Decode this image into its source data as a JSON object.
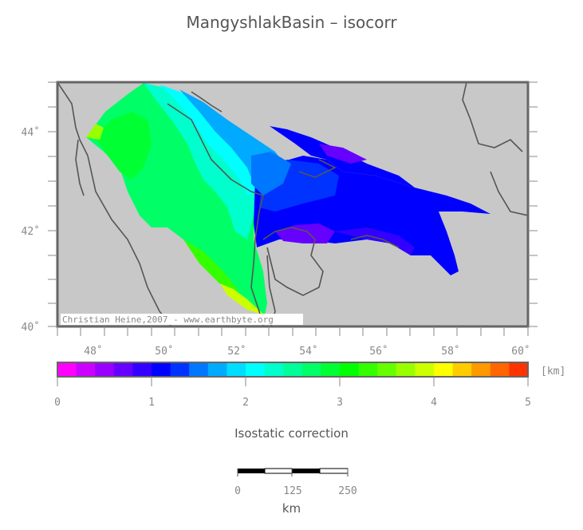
{
  "title": "MangyshlakBasin – isocorr",
  "map": {
    "lat_labels": [
      "44˚",
      "42˚",
      "40˚"
    ],
    "lon_labels": [
      "48˚",
      "50˚",
      "52˚",
      "54˚",
      "56˚",
      "58˚",
      "60˚"
    ],
    "credit": "Christian Heine,2007 - www.earthbyte.org",
    "land_color": "#c8c8c8",
    "coast_color": "#555555"
  },
  "colorbar": {
    "unit": "[km]",
    "tick_labels": [
      "0",
      "1",
      "2",
      "3",
      "4",
      "5"
    ],
    "colors": [
      "#ff00ff",
      "#cc00ff",
      "#9900ff",
      "#6600ff",
      "#3300ff",
      "#0000ff",
      "#0033ff",
      "#0077ff",
      "#00aaff",
      "#00ddff",
      "#00ffff",
      "#00ffcc",
      "#00ff99",
      "#00ff66",
      "#00ff33",
      "#00ff00",
      "#33ff00",
      "#66ff00",
      "#99ff00",
      "#ccff00",
      "#ffff00",
      "#ffcc00",
      "#ff9900",
      "#ff6600",
      "#ff3300"
    ],
    "title": "Isostatic correction"
  },
  "scalebar": {
    "labels": [
      "0",
      "125",
      "250"
    ],
    "unit": "km"
  }
}
